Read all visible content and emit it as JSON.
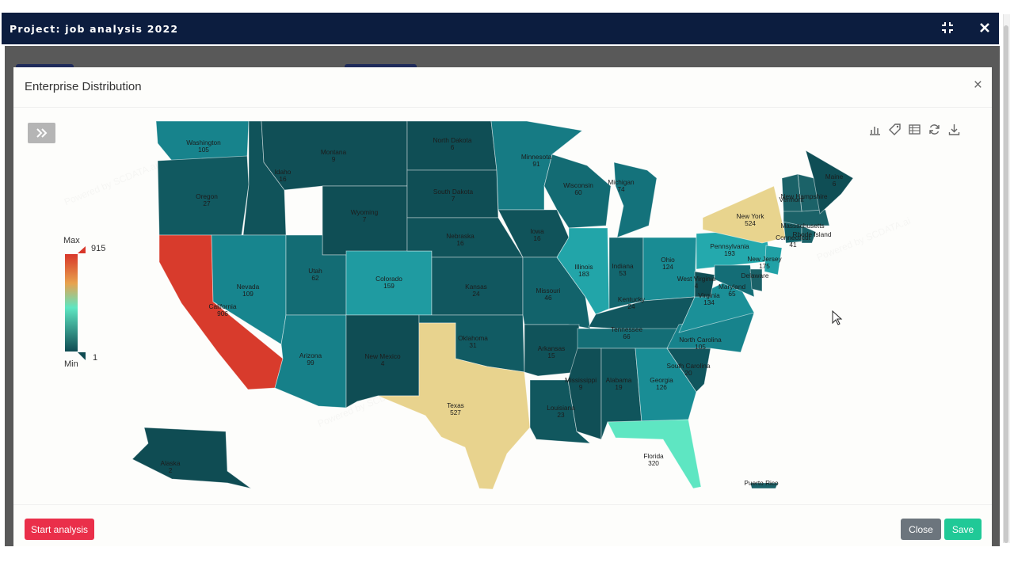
{
  "window": {
    "title": "Project: job analysis 2022"
  },
  "modal": {
    "title": "Enterprise Distribution",
    "buttons": {
      "start": "Start analysis",
      "close": "Close",
      "save": "Save"
    }
  },
  "legend": {
    "max_label": "Max",
    "min_label": "Min",
    "max_value": "915",
    "min_value": "1"
  },
  "watermark": "Powered by SCDATA.ai",
  "colors": {
    "min": "#0f4b52",
    "mid": "#5ee6c2",
    "high": "#e8d58f",
    "max": "#d8372a"
  },
  "icons": [
    "compress-icon",
    "close-icon",
    "expand-panel-icon",
    "bar-chart-icon",
    "tag-icon",
    "table-icon",
    "refresh-icon",
    "download-icon"
  ],
  "chart_data": {
    "type": "choropleth",
    "title": "Enterprise Distribution",
    "scale": {
      "min": 1,
      "max": 915
    },
    "regions": [
      {
        "name": "Washington",
        "value": 105
      },
      {
        "name": "Oregon",
        "value": 27
      },
      {
        "name": "California",
        "value": 906
      },
      {
        "name": "Idaho",
        "value": 16
      },
      {
        "name": "Nevada",
        "value": 109
      },
      {
        "name": "Montana",
        "value": 9
      },
      {
        "name": "Wyoming",
        "value": 7
      },
      {
        "name": "Utah",
        "value": 62
      },
      {
        "name": "Arizona",
        "value": 99
      },
      {
        "name": "Colorado",
        "value": 159
      },
      {
        "name": "New Mexico",
        "value": 4
      },
      {
        "name": "North Dakota",
        "value": 6
      },
      {
        "name": "South Dakota",
        "value": 7
      },
      {
        "name": "Nebraska",
        "value": 16
      },
      {
        "name": "Kansas",
        "value": 24
      },
      {
        "name": "Oklahoma",
        "value": 31
      },
      {
        "name": "Texas",
        "value": 527
      },
      {
        "name": "Minnesota",
        "value": 91
      },
      {
        "name": "Iowa",
        "value": 16
      },
      {
        "name": "Missouri",
        "value": 46
      },
      {
        "name": "Arkansas",
        "value": 15
      },
      {
        "name": "Louisiana",
        "value": 23
      },
      {
        "name": "Wisconsin",
        "value": 60
      },
      {
        "name": "Illinois",
        "value": 183
      },
      {
        "name": "Michigan",
        "value": 74
      },
      {
        "name": "Indiana",
        "value": 53
      },
      {
        "name": "Ohio",
        "value": 124
      },
      {
        "name": "Kentucky",
        "value": 24
      },
      {
        "name": "Tennessee",
        "value": 66
      },
      {
        "name": "Mississippi",
        "value": 9
      },
      {
        "name": "Alabama",
        "value": 19
      },
      {
        "name": "Georgia",
        "value": 126
      },
      {
        "name": "Florida",
        "value": 320
      },
      {
        "name": "South Carolina",
        "value": 20
      },
      {
        "name": "North Carolina",
        "value": 105
      },
      {
        "name": "Virginia",
        "value": 134
      },
      {
        "name": "West Virginia",
        "value": 4
      },
      {
        "name": "Pennsylvania",
        "value": 193
      },
      {
        "name": "New York",
        "value": 524
      },
      {
        "name": "New Jersey",
        "value": 175
      },
      {
        "name": "Maryland",
        "value": 65
      },
      {
        "name": "Delaware",
        "value": ""
      },
      {
        "name": "Connecticut",
        "value": 41
      },
      {
        "name": "Rhode Island",
        "value": ""
      },
      {
        "name": "Massachusetts",
        "value": ""
      },
      {
        "name": "New Hampshire",
        "value": ""
      },
      {
        "name": "Vermont",
        "value": ""
      },
      {
        "name": "Maine",
        "value": 6
      },
      {
        "name": "Alaska",
        "value": 2
      },
      {
        "name": "Puerto Rico",
        "value": ""
      }
    ]
  }
}
